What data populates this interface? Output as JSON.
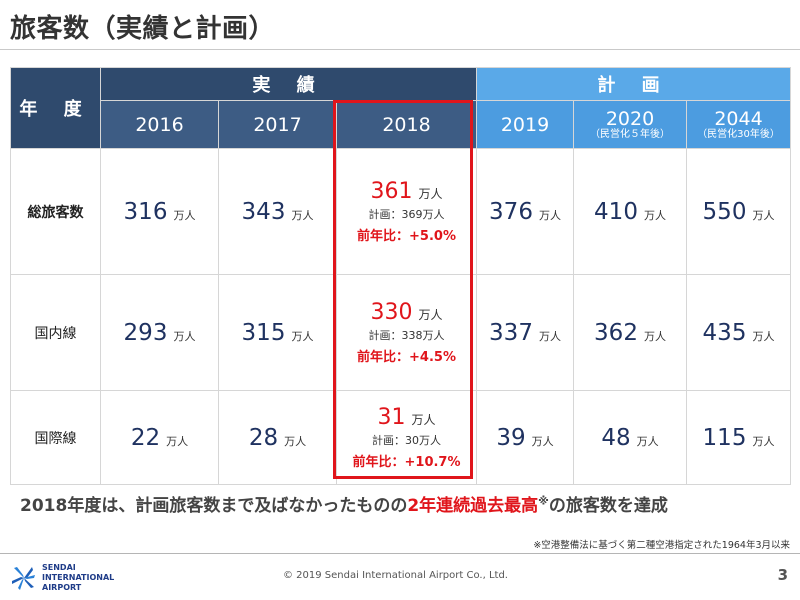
{
  "title": "旅客数（実績と計画）",
  "header": {
    "year_label": "年 度",
    "actual_label": "実 績",
    "plan_label": "計 画",
    "years": [
      {
        "year": "2016",
        "sub": ""
      },
      {
        "year": "2017",
        "sub": ""
      },
      {
        "year": "2018",
        "sub": ""
      },
      {
        "year": "2019",
        "sub": ""
      },
      {
        "year": "2020",
        "sub": "（民営化５年後）"
      },
      {
        "year": "2044",
        "sub": "（民営化30年後）"
      }
    ]
  },
  "unit": "万人",
  "rows": [
    {
      "label": "総旅客数",
      "values": [
        "316",
        "343",
        "361",
        "376",
        "410",
        "550"
      ],
      "plan_2018": "計画：369万人",
      "yoy_2018": "前年比：+5.0%"
    },
    {
      "label": "国内線",
      "values": [
        "293",
        "315",
        "330",
        "337",
        "362",
        "435"
      ],
      "plan_2018": "計画：338万人",
      "yoy_2018": "前年比：+4.5%"
    },
    {
      "label": "国際線",
      "values": [
        "22",
        "28",
        "31",
        "39",
        "48",
        "115"
      ],
      "plan_2018": "計画：30万人",
      "yoy_2018": "前年比：+10.7%"
    }
  ],
  "conclusion": {
    "pre": "2018年度は、計画旅客数まで及ばなかったものの",
    "highlight": "2年連続過去最高",
    "mark": "※",
    "post": "の旅客数を達成"
  },
  "footnote": "※空港整備法に基づく第二種空港指定された1964年3月以来",
  "footer": {
    "logo_line1": "SENDAI",
    "logo_line2": "INTERNATIONAL",
    "logo_line3": "AIRPORT",
    "copyright": "© 2019 Sendai International Airport Co., Ltd.",
    "page_number": "3"
  },
  "colors": {
    "header_dark": "#2f4a6d",
    "header_plan": "#5aa9e8",
    "highlight_red": "#e0151b",
    "number_navy": "#1f3260"
  }
}
